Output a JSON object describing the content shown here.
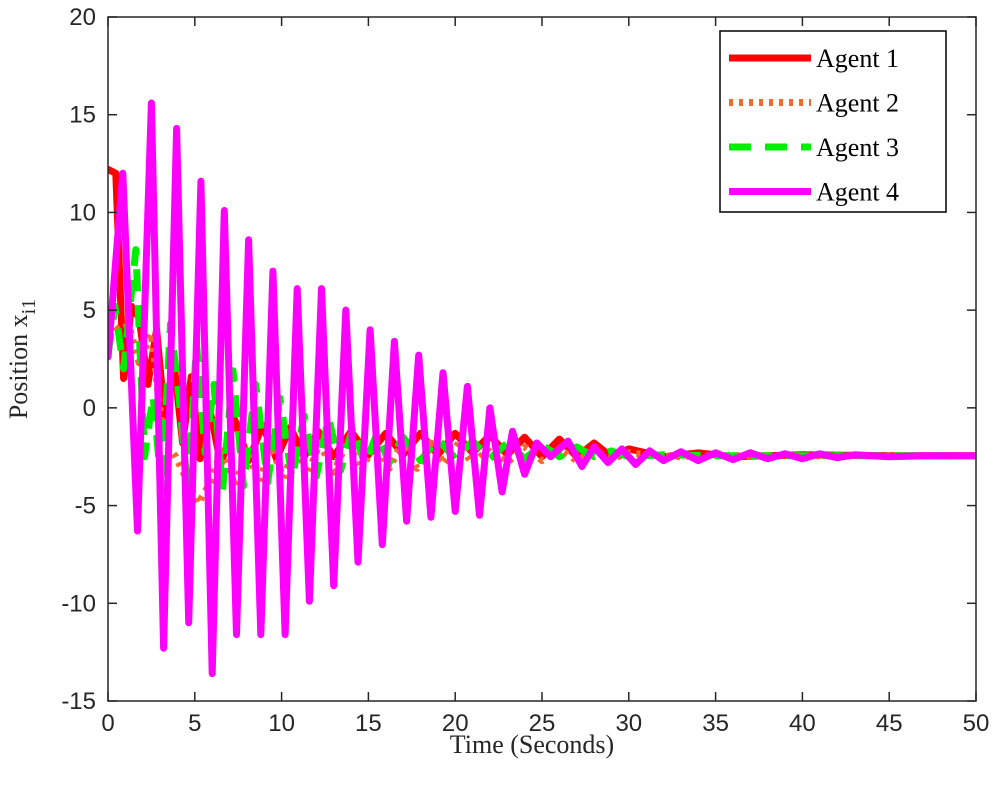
{
  "chart_data": {
    "type": "line",
    "title": "",
    "xlabel": "Time (Seconds)",
    "ylabel": "Position x",
    "ylabel_subscript": "i1",
    "xlim": [
      0,
      50
    ],
    "ylim": [
      -15,
      20
    ],
    "xticks": [
      "0",
      "5",
      "10",
      "15",
      "20",
      "25",
      "30",
      "35",
      "40",
      "45",
      "50"
    ],
    "yticks": [
      "-15",
      "-10",
      "-5",
      "0",
      "5",
      "10",
      "15",
      "20"
    ],
    "grid": false,
    "legend_position": "top-right",
    "series": [
      {
        "name": "Agent 1",
        "color": "#ff0000",
        "dash": "solid",
        "points": [
          [
            0,
            12.2
          ],
          [
            0.45,
            12.0
          ],
          [
            0.9,
            1.5
          ],
          [
            1.35,
            5.2
          ],
          [
            1.8,
            4.6
          ],
          [
            2.3,
            1.2
          ],
          [
            2.8,
            4.0
          ],
          [
            3.3,
            -0.8
          ],
          [
            3.8,
            2.3
          ],
          [
            4.3,
            -1.8
          ],
          [
            4.8,
            1.6
          ],
          [
            5.3,
            -2.6
          ],
          [
            5.8,
            0.2
          ],
          [
            6.5,
            -2.9
          ],
          [
            7.3,
            -0.6
          ],
          [
            8.1,
            -2.7
          ],
          [
            8.9,
            -0.9
          ],
          [
            9.7,
            -2.6
          ],
          [
            10.5,
            -1.0
          ],
          [
            11.3,
            -2.5
          ],
          [
            12.1,
            -1.2
          ],
          [
            13.0,
            -2.5
          ],
          [
            14.0,
            -1.2
          ],
          [
            15.0,
            -2.4
          ],
          [
            16.0,
            -1.3
          ],
          [
            17.0,
            -2.4
          ],
          [
            18.0,
            -1.3
          ],
          [
            19.0,
            -2.4
          ],
          [
            20.0,
            -1.3
          ],
          [
            21.0,
            -2.3
          ],
          [
            22.0,
            -1.4
          ],
          [
            23.0,
            -2.4
          ],
          [
            24.0,
            -1.5
          ],
          [
            25.0,
            -2.5
          ],
          [
            26.0,
            -1.6
          ],
          [
            27.0,
            -2.5
          ],
          [
            28.0,
            -1.8
          ],
          [
            29.0,
            -2.5
          ],
          [
            30.0,
            -2.1
          ],
          [
            32.0,
            -2.5
          ],
          [
            34.0,
            -2.3
          ],
          [
            36.0,
            -2.5
          ],
          [
            40.0,
            -2.4
          ],
          [
            45.0,
            -2.45
          ],
          [
            50.0,
            -2.45
          ]
        ]
      },
      {
        "name": "Agent 2",
        "color": "#f26a2e",
        "dash": "dotted",
        "points": [
          [
            0,
            4.5
          ],
          [
            0.6,
            4.0
          ],
          [
            1.2,
            4.2
          ],
          [
            1.8,
            2.3
          ],
          [
            2.5,
            3.8
          ],
          [
            3.2,
            -1.7
          ],
          [
            3.9,
            -2.5
          ],
          [
            4.5,
            -3.6
          ],
          [
            5.2,
            -4.9
          ],
          [
            5.9,
            -3.8
          ],
          [
            6.6,
            -2.0
          ],
          [
            7.3,
            -4.0
          ],
          [
            8.0,
            -2.2
          ],
          [
            8.7,
            -3.8
          ],
          [
            9.4,
            -2.0
          ],
          [
            10.1,
            -3.6
          ],
          [
            10.8,
            -1.9
          ],
          [
            11.5,
            -3.4
          ],
          [
            12.2,
            -1.8
          ],
          [
            13.0,
            -3.3
          ],
          [
            13.8,
            -1.7
          ],
          [
            14.6,
            -3.2
          ],
          [
            15.4,
            -1.7
          ],
          [
            16.2,
            -3.1
          ],
          [
            17.0,
            -1.7
          ],
          [
            17.8,
            -3.1
          ],
          [
            18.6,
            -1.8
          ],
          [
            19.4,
            -2.9
          ],
          [
            20.2,
            -1.8
          ],
          [
            21.0,
            -2.9
          ],
          [
            22.0,
            -2.0
          ],
          [
            23.0,
            -2.8
          ],
          [
            24.0,
            -2.0
          ],
          [
            25.0,
            -2.7
          ],
          [
            26.0,
            -2.1
          ],
          [
            27.0,
            -2.7
          ],
          [
            28.0,
            -2.2
          ],
          [
            29.0,
            -2.6
          ],
          [
            30.0,
            -2.3
          ],
          [
            32.0,
            -2.5
          ],
          [
            35.0,
            -2.45
          ],
          [
            40.0,
            -2.45
          ],
          [
            50.0,
            -2.45
          ]
        ]
      },
      {
        "name": "Agent 3",
        "color": "#00ee00",
        "dash": "dashed",
        "points": [
          [
            0,
            2.7
          ],
          [
            0.4,
            5.2
          ],
          [
            0.9,
            2.0
          ],
          [
            1.6,
            8.1
          ],
          [
            2.1,
            -2.5
          ],
          [
            2.6,
            0.6
          ],
          [
            3.1,
            -4.3
          ],
          [
            3.6,
            4.3
          ],
          [
            4.1,
            0.5
          ],
          [
            4.6,
            -4.3
          ],
          [
            5.1,
            3.3
          ],
          [
            5.6,
            -2.3
          ],
          [
            6.1,
            1.2
          ],
          [
            6.6,
            -4.2
          ],
          [
            7.2,
            1.9
          ],
          [
            7.8,
            -4.0
          ],
          [
            8.5,
            1.2
          ],
          [
            9.2,
            -3.8
          ],
          [
            9.9,
            0.5
          ],
          [
            10.6,
            -3.6
          ],
          [
            11.3,
            -0.4
          ],
          [
            12.0,
            -3.5
          ],
          [
            12.7,
            -0.5
          ],
          [
            13.4,
            -3.2
          ],
          [
            14.1,
            -1.0
          ],
          [
            14.8,
            -2.9
          ],
          [
            15.5,
            -1.3
          ],
          [
            16.2,
            -2.8
          ],
          [
            17.0,
            -1.5
          ],
          [
            18.0,
            -2.7
          ],
          [
            19.0,
            -1.6
          ],
          [
            20.0,
            -2.6
          ],
          [
            21.0,
            -1.7
          ],
          [
            22.0,
            -2.6
          ],
          [
            23.0,
            -1.8
          ],
          [
            24.0,
            -2.6
          ],
          [
            25.0,
            -1.9
          ],
          [
            26.0,
            -2.5
          ],
          [
            27.0,
            -2.0
          ],
          [
            28.0,
            -2.5
          ],
          [
            29.0,
            -2.2
          ],
          [
            30.0,
            -2.5
          ],
          [
            32.0,
            -2.4
          ],
          [
            35.0,
            -2.45
          ],
          [
            40.0,
            -2.45
          ],
          [
            50.0,
            -2.45
          ]
        ]
      },
      {
        "name": "Agent 4",
        "color": "#ff00ff",
        "dash": "solid",
        "points": [
          [
            0,
            2.6
          ],
          [
            0.85,
            12.0
          ],
          [
            1.7,
            -6.3
          ],
          [
            2.5,
            15.6
          ],
          [
            3.2,
            -12.3
          ],
          [
            3.95,
            14.3
          ],
          [
            4.65,
            -11.0
          ],
          [
            5.35,
            11.6
          ],
          [
            6.0,
            -13.6
          ],
          [
            6.7,
            10.1
          ],
          [
            7.4,
            -11.6
          ],
          [
            8.1,
            8.6
          ],
          [
            8.8,
            -11.6
          ],
          [
            9.5,
            7.0
          ],
          [
            10.2,
            -11.6
          ],
          [
            10.9,
            6.1
          ],
          [
            11.6,
            -9.9
          ],
          [
            12.3,
            6.1
          ],
          [
            13.0,
            -9.1
          ],
          [
            13.7,
            5.0
          ],
          [
            14.4,
            -7.9
          ],
          [
            15.1,
            4.0
          ],
          [
            15.8,
            -7.0
          ],
          [
            16.5,
            3.4
          ],
          [
            17.2,
            -5.8
          ],
          [
            17.9,
            2.7
          ],
          [
            18.6,
            -5.6
          ],
          [
            19.3,
            1.8
          ],
          [
            20.0,
            -5.3
          ],
          [
            20.7,
            1.1
          ],
          [
            21.4,
            -5.5
          ],
          [
            22.0,
            0.0
          ],
          [
            22.7,
            -4.3
          ],
          [
            23.3,
            -1.2
          ],
          [
            24.0,
            -3.4
          ],
          [
            24.7,
            -1.8
          ],
          [
            25.5,
            -2.5
          ],
          [
            26.5,
            -1.7
          ],
          [
            27.3,
            -3.0
          ],
          [
            28.0,
            -2.0
          ],
          [
            28.8,
            -2.8
          ],
          [
            29.6,
            -2.1
          ],
          [
            30.4,
            -2.9
          ],
          [
            31.2,
            -2.2
          ],
          [
            32.0,
            -2.7
          ],
          [
            33.0,
            -2.25
          ],
          [
            34.0,
            -2.7
          ],
          [
            35.0,
            -2.3
          ],
          [
            36.0,
            -2.65
          ],
          [
            37.0,
            -2.3
          ],
          [
            38.0,
            -2.6
          ],
          [
            39.0,
            -2.35
          ],
          [
            40.0,
            -2.6
          ],
          [
            41.0,
            -2.35
          ],
          [
            42.0,
            -2.55
          ],
          [
            43.0,
            -2.4
          ],
          [
            45.0,
            -2.5
          ],
          [
            47.0,
            -2.45
          ],
          [
            50.0,
            -2.45
          ]
        ]
      }
    ]
  }
}
